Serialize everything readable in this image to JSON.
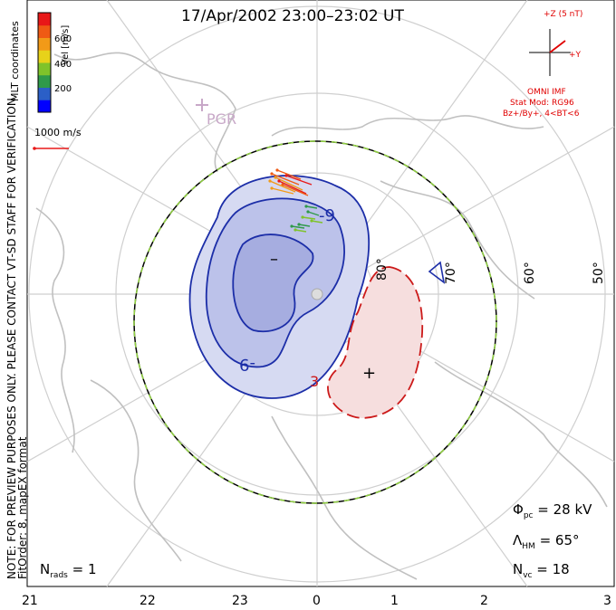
{
  "title": "17/Apr/2002 23:00–23:02 UT",
  "left_note": {
    "line1": "NOTE: FOR PREVIEW PURPOSES ONLY. PLEASE CONTACT VT-SD STAFF FOR VERIFICATION.",
    "line2": "FitOrder: 8, mapEX format"
  },
  "colorbar": {
    "unit_label": "Vel [m/s]",
    "coord_label": "MLT coordinates",
    "ticks": [
      "600",
      "400",
      "200"
    ],
    "colors": [
      "#0000ff",
      "#2b5fc7",
      "#2f9a4a",
      "#7fc32a",
      "#e7d21a",
      "#f29a18",
      "#ef5a14",
      "#e81818"
    ]
  },
  "scale_vector": {
    "label": "1000 m/s",
    "color": "#e81818"
  },
  "station": {
    "label": "PGR",
    "color": "#c8a8c8"
  },
  "imf": {
    "clock_label_z": "+Z (5 nT)",
    "clock_label_y": "+Y",
    "source": "OMNI IMF",
    "model": "Stat Mod: RG96",
    "condition": "Bz+/By+, 4<BT<6",
    "color": "#e00000"
  },
  "latitude_labels": [
    "80°",
    "70°",
    "60°",
    "50°"
  ],
  "potential": {
    "neg_label_1": "-9",
    "neg_label_2": "-9",
    "pos_label": "3",
    "min_marker": "–",
    "max_marker": "+",
    "neg_color": "#1c2ea8",
    "pos_color": "#cc1a1a",
    "neg_fill": "#bcc2ea",
    "pos_fill": "#f4d4d4"
  },
  "stats": {
    "phi_pc_symbol": "Φ",
    "phi_pc_sub": "pc",
    "phi_pc_value": "= 28 kV",
    "lambda_symbol": "Λ",
    "lambda_sub": "HM",
    "lambda_value": "= 65°",
    "nvc_symbol": "N",
    "nvc_sub": "vc",
    "nvc_value": "= 18",
    "nrads_symbol": "N",
    "nrads_sub": "rads",
    "nrads_value": "= 1"
  },
  "mlt_ticks": [
    "21",
    "22",
    "23",
    "0",
    "1",
    "2",
    "3"
  ],
  "colors": {
    "grid": "#c8c8c8",
    "coast": "#c0c0c0",
    "hmb_dash": "#90d040"
  }
}
